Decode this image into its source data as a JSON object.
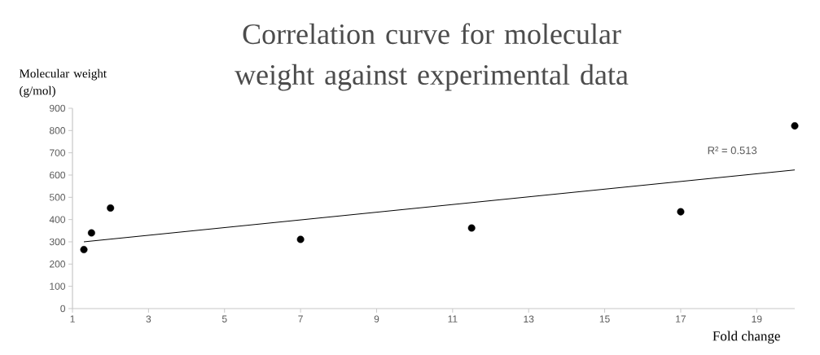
{
  "chart_data": {
    "type": "scatter",
    "title": "Correlation curve for molecular weight against experimental data",
    "xlabel": "Fold change",
    "ylabel": "Molecular weight (g/mol)",
    "series": [
      {
        "color": "#000000",
        "marker": "circle",
        "x": [
          1.3,
          1.5,
          2,
          7,
          11.5,
          17,
          20
        ],
        "values": [
          265,
          340,
          452,
          311,
          362,
          435,
          821
        ]
      },
      {
        "type": "line",
        "color": "#000000",
        "marker": "none",
        "x": [
          1.3,
          20
        ],
        "values": [
          300,
          623
        ]
      }
    ],
    "annotations": [
      "R² = 0.513"
    ],
    "xlim": [
      1,
      20
    ],
    "xticks": [
      1,
      3,
      5,
      7,
      9,
      11,
      13,
      15,
      17,
      19
    ],
    "ylim": [
      0,
      900
    ],
    "yticks": [
      0,
      100,
      200,
      300,
      400,
      500,
      600,
      700,
      800,
      900
    ]
  }
}
